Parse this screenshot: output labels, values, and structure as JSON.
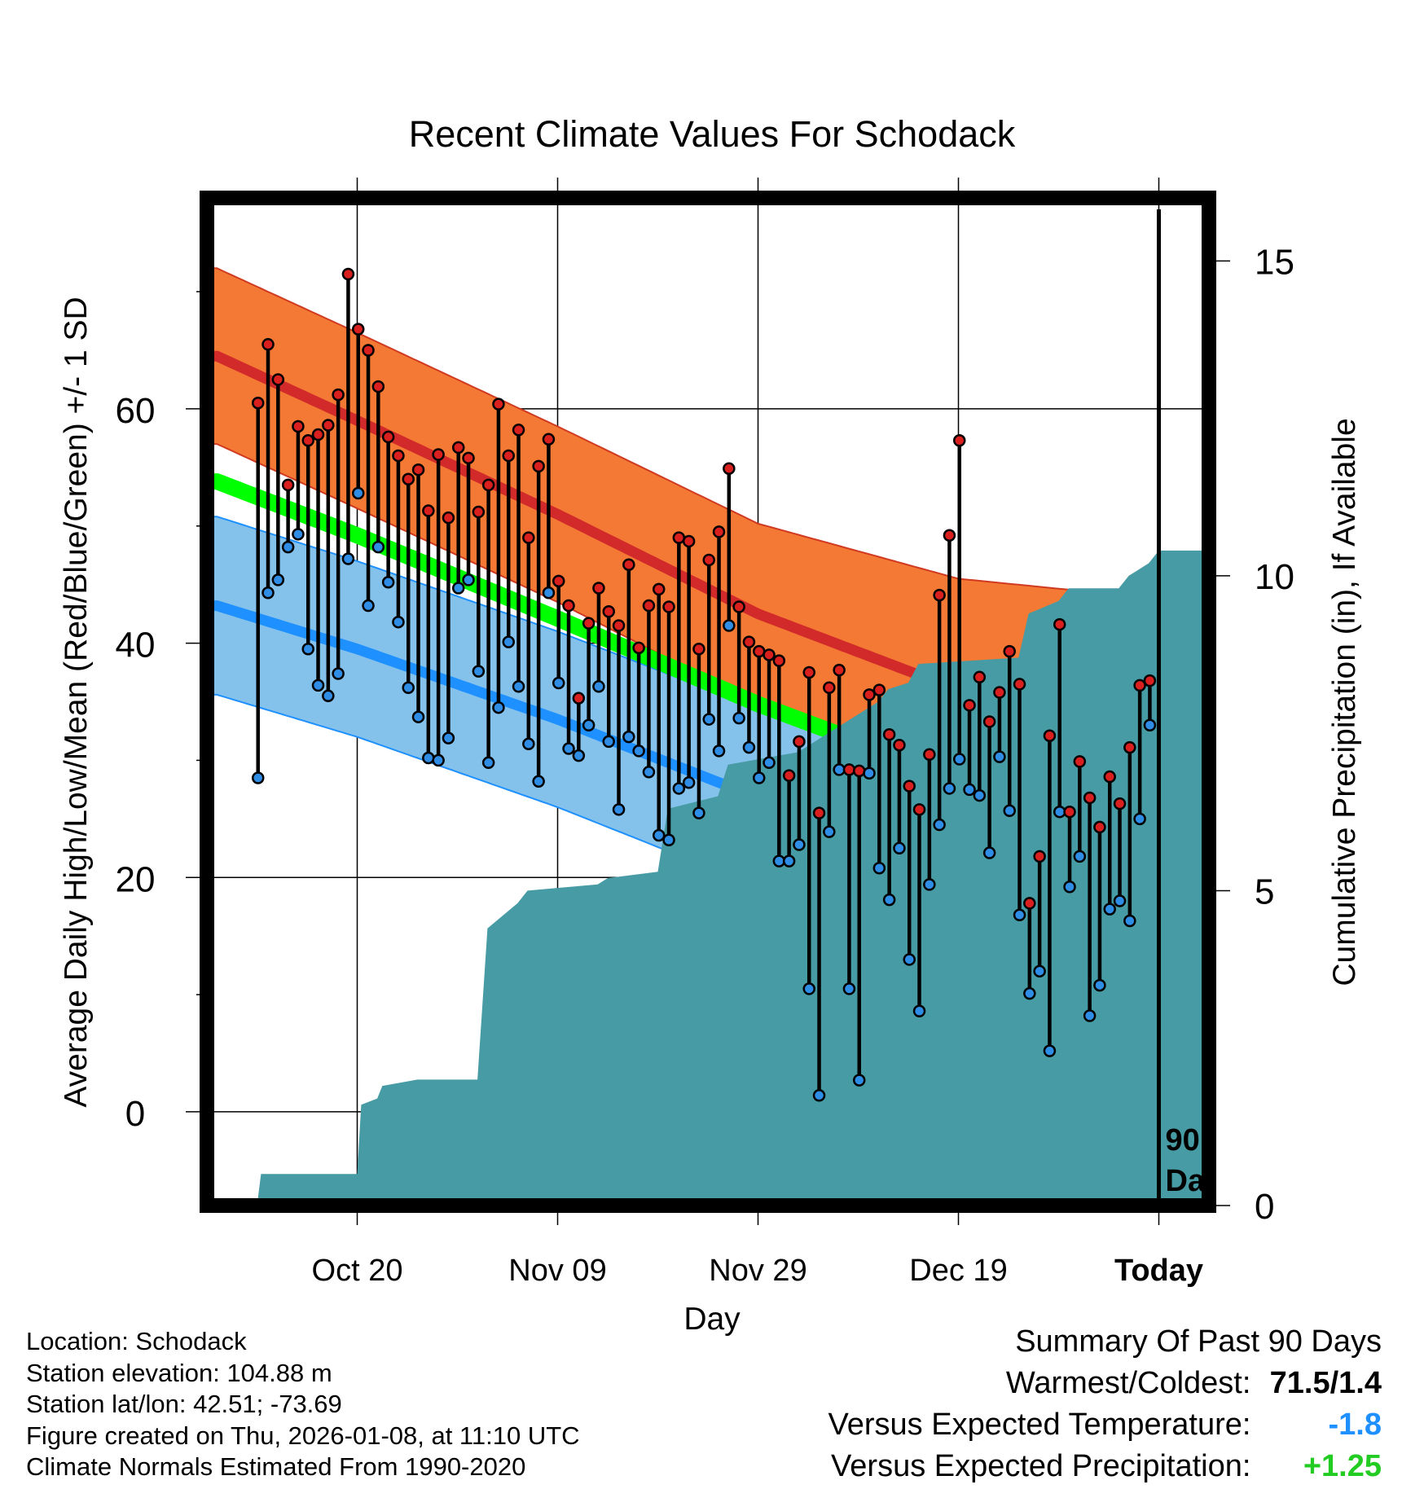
{
  "chart_data": {
    "type": "line",
    "title": "Recent Climate Values For Schodack",
    "xlabel": "Day",
    "ylabel": "Average Daily High/Low/Mean (Red/Blue/Green) +/- 1 SD",
    "y2label": "Cumulative Precipitation (in), If Available",
    "x_range_days": [
      -95,
      5
    ],
    "y_range": [
      -8,
      78
    ],
    "y2_range": [
      0,
      16
    ],
    "x_ticks": [
      {
        "label": "Oct 20",
        "day": -80
      },
      {
        "label": "Nov 09",
        "day": -60
      },
      {
        "label": "Nov 29",
        "day": -40
      },
      {
        "label": "Dec 19",
        "day": -20
      },
      {
        "label": "Today",
        "day": 0
      }
    ],
    "y_ticks": [
      0,
      20,
      40,
      60
    ],
    "y_minor_ticks": [
      -10,
      10,
      30,
      50,
      70
    ],
    "y2_ticks": [
      0,
      5,
      10,
      15
    ],
    "marker_label": [
      "90",
      "Days"
    ],
    "marker_day": 0,
    "grid": true,
    "normals": {
      "days": [
        -94,
        -80,
        -60,
        -40,
        -20,
        0,
        9
      ],
      "high_mean": [
        64.5,
        59,
        51,
        42.5,
        36,
        33.2,
        32.7
      ],
      "high_sd": [
        7.5,
        7.5,
        7.5,
        7.7,
        9.5,
        10.6,
        11.0
      ],
      "low_mean": [
        43.2,
        39.5,
        33.5,
        26.8,
        20.8,
        16.3,
        14.7
      ],
      "low_sd": [
        7.6,
        7.5,
        7.5,
        7.6,
        7.4,
        7.4,
        7.3
      ],
      "mean": [
        53.8,
        49.2,
        42.1,
        34.8,
        28.4,
        24.8,
        23.7
      ]
    },
    "series": [
      {
        "name": "High",
        "values": [
          60.5,
          65.5,
          62.5,
          53.5,
          58.5,
          57.3,
          57.8,
          58.6,
          61.2,
          71.5,
          66.8,
          65,
          61.9,
          57.6,
          56,
          54,
          54.8,
          51.3,
          56.1,
          50.7,
          56.7,
          55.8,
          51.2,
          53.5,
          60.4,
          56,
          58.2,
          49,
          55.1,
          57.4,
          45.3,
          43.2,
          35.3,
          41.7,
          44.7,
          42.7,
          41.5,
          46.7,
          39.6,
          43.2,
          44.6,
          43.1,
          49,
          48.7,
          39.5,
          47.1,
          49.5,
          54.9,
          43.1,
          40.1,
          39.3,
          39,
          38.5,
          28.7,
          31.6,
          37.5,
          25.5,
          36.2,
          37.7,
          29.2,
          29.1,
          35.6,
          36,
          32.2,
          31.3,
          27.8,
          25.8,
          30.5,
          44.1,
          49.2,
          57.3,
          34.7,
          37.1,
          33.3,
          35.8,
          39.3,
          36.5,
          17.8,
          21.8,
          32.1,
          41.6,
          25.6,
          29.9,
          26.8,
          24.3,
          28.6,
          26.3,
          31.1,
          36.4,
          36.8
        ]
      },
      {
        "name": "Low",
        "values": [
          28.5,
          44.3,
          45.4,
          48.2,
          49.3,
          39.5,
          36.4,
          35.5,
          37.4,
          47.2,
          52.8,
          43.2,
          48.2,
          45.2,
          41.8,
          36.2,
          33.7,
          30.2,
          30,
          31.9,
          44.7,
          45.4,
          37.6,
          29.8,
          34.5,
          40.1,
          36.3,
          31.4,
          28.2,
          44.3,
          36.6,
          31,
          30.4,
          33,
          36.3,
          31.6,
          25.8,
          32,
          30.8,
          29,
          23.6,
          23.2,
          27.6,
          28.1,
          25.5,
          33.5,
          30.8,
          41.5,
          33.6,
          31.1,
          28.5,
          29.8,
          21.4,
          21.4,
          22.8,
          10.5,
          1.4,
          23.9,
          29.2,
          10.5,
          2.7,
          28.9,
          20.8,
          18.1,
          22.5,
          13,
          8.6,
          19.4,
          24.5,
          27.6,
          30.1,
          27.5,
          27,
          22.1,
          30.3,
          25.7,
          16.8,
          10.1,
          12,
          5.2,
          25.6,
          19.2,
          21.8,
          8.2,
          10.8,
          17.3,
          18,
          16.3,
          25,
          33
        ]
      },
      {
        "name": "Cumulative Precipitation",
        "x": [
          -94,
          -90,
          -89.6,
          -80,
          -79.6,
          -78,
          -77.5,
          -74,
          -73.5,
          -68,
          -67,
          -64,
          -63,
          -56,
          -55,
          -50,
          -49,
          -44,
          -43,
          -36,
          -35,
          -28,
          -27,
          -25,
          -24,
          -14,
          -13,
          -10,
          -9,
          -4,
          -3,
          -1,
          0,
          5
        ],
        "values": [
          0,
          0,
          0.5,
          0.5,
          1.6,
          1.7,
          1.9,
          2,
          2,
          2,
          4.4,
          4.8,
          5,
          5.1,
          5.2,
          5.3,
          6.3,
          6.5,
          7,
          7.2,
          7.3,
          8.0,
          8.2,
          8.3,
          8.6,
          8.7,
          9.4,
          9.6,
          9.8,
          9.8,
          10.0,
          10.2,
          10.4,
          10.4
        ]
      }
    ]
  },
  "info": {
    "location": "Location: Schodack",
    "elevation": "Station elevation: 104.88 m",
    "latlon": "Station lat/lon: 42.51; -73.69",
    "created": "Figure created on Thu, 2026-01-08, at 11:10 UTC",
    "normals": "Climate Normals Estimated From 1990-2020"
  },
  "summary": {
    "title": "Summary Of Past 90 Days",
    "warm_cold_label": "Warmest/Coldest:",
    "warm_cold_value": "71.5/1.4",
    "temp_label": "Versus Expected Temperature:",
    "temp_value": "-1.8",
    "precip_label": "Versus Expected Precipitation:",
    "precip_value": "+1.25"
  },
  "colors": {
    "high_band": "#f37934",
    "high_line": "#d22a2a",
    "low_band": "#85c2eb",
    "low_line": "#1e90ff",
    "mean_line": "#00ff00",
    "deficit_band": "#9b1111",
    "precip_fill": "#479ba4",
    "high_marker": "#d9201f",
    "low_marker": "#2f8de6",
    "temp_value": "#1e90ff",
    "precip_value": "#22cc22"
  }
}
